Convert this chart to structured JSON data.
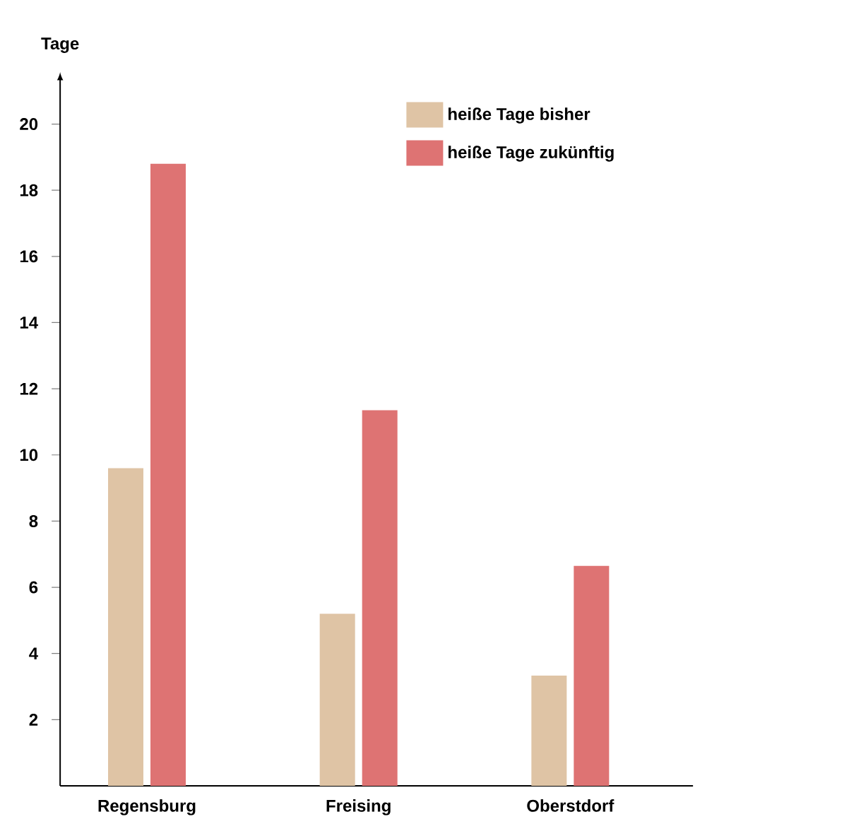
{
  "chart_data": {
    "type": "bar",
    "ylabel": "Tage",
    "categories": [
      "Regensburg",
      "Freising",
      "Oberstdorf"
    ],
    "series": [
      {
        "name": "heiße Tage bisher",
        "color": "#dfc4a5",
        "values": [
          9.6,
          5.2,
          3.33
        ]
      },
      {
        "name": "heiße Tage zukünftig",
        "color": "#de7373",
        "values": [
          18.8,
          11.35,
          6.65
        ]
      }
    ],
    "ylim": [
      0,
      21.4
    ],
    "yticks": [
      2,
      4,
      6,
      8,
      10,
      12,
      14,
      16,
      18,
      20
    ],
    "legend": "top right",
    "grid": false
  }
}
